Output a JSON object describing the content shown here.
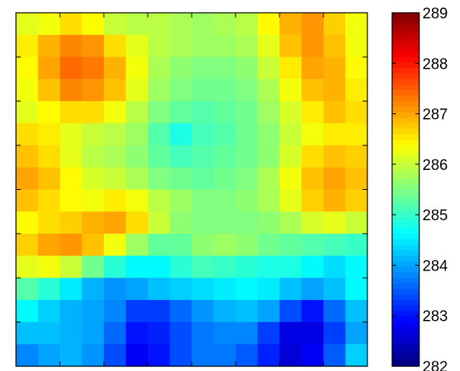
{
  "chart_data": {
    "type": "heatmap",
    "title": "",
    "xlabel": "",
    "ylabel": "",
    "colormap": "jet",
    "grid": false,
    "x_ticks": 7,
    "y_ticks": 7,
    "colorbar": {
      "min": 282,
      "max": 289,
      "ticks": [
        282,
        283,
        284,
        285,
        286,
        287,
        288,
        289
      ],
      "tick_labels": [
        "282",
        "283",
        "284",
        "285",
        "286",
        "287",
        "288",
        "289"
      ]
    },
    "grid_size": {
      "rows": 16,
      "cols": 16
    },
    "values": [
      [
        286.2,
        286.3,
        286.6,
        286.4,
        286.0,
        285.9,
        285.9,
        285.8,
        285.7,
        285.8,
        285.9,
        286.4,
        286.9,
        287.1,
        286.7,
        286.3
      ],
      [
        286.5,
        286.9,
        287.2,
        287.1,
        286.6,
        286.2,
        285.9,
        285.8,
        285.7,
        285.7,
        285.8,
        286.2,
        286.8,
        287.1,
        286.8,
        286.3
      ],
      [
        286.4,
        287.0,
        287.4,
        287.3,
        286.9,
        286.3,
        285.8,
        285.6,
        285.5,
        285.5,
        285.6,
        286.0,
        286.5,
        287.0,
        286.9,
        286.4
      ],
      [
        286.3,
        286.8,
        287.2,
        287.1,
        286.8,
        286.2,
        285.7,
        285.5,
        285.4,
        285.4,
        285.5,
        285.8,
        286.3,
        286.8,
        286.9,
        286.5
      ],
      [
        286.2,
        286.4,
        286.6,
        286.6,
        286.3,
        285.9,
        285.5,
        285.3,
        285.2,
        285.3,
        285.4,
        285.7,
        286.1,
        286.5,
        286.8,
        286.6
      ],
      [
        286.6,
        286.5,
        286.2,
        286.0,
        285.9,
        285.7,
        285.2,
        284.8,
        285.1,
        285.2,
        285.4,
        285.6,
        286.0,
        286.3,
        286.5,
        286.5
      ],
      [
        286.8,
        286.6,
        286.2,
        285.9,
        285.8,
        285.6,
        285.3,
        285.1,
        285.2,
        285.3,
        285.4,
        285.6,
        286.1,
        286.6,
        286.8,
        286.7
      ],
      [
        287.0,
        286.8,
        286.4,
        286.1,
        286.0,
        285.8,
        285.5,
        285.4,
        285.3,
        285.4,
        285.5,
        285.8,
        286.3,
        286.8,
        287.0,
        286.8
      ],
      [
        286.8,
        286.6,
        286.4,
        286.3,
        286.5,
        286.3,
        285.9,
        285.7,
        285.5,
        285.5,
        285.6,
        285.8,
        286.2,
        286.7,
        286.9,
        286.7
      ],
      [
        286.4,
        286.6,
        286.7,
        286.9,
        287.0,
        286.6,
        286.0,
        285.6,
        285.5,
        285.5,
        285.5,
        285.6,
        285.8,
        286.1,
        286.2,
        286.0
      ],
      [
        286.7,
        287.0,
        287.1,
        286.8,
        286.3,
        285.7,
        285.3,
        285.3,
        285.6,
        285.7,
        285.6,
        285.4,
        285.3,
        285.2,
        285.1,
        285.0
      ],
      [
        286.2,
        286.3,
        286.0,
        285.4,
        284.9,
        284.6,
        284.6,
        284.9,
        285.1,
        285.0,
        284.9,
        284.8,
        284.8,
        284.6,
        284.4,
        284.6
      ],
      [
        285.2,
        284.9,
        284.5,
        284.1,
        283.9,
        284.0,
        284.2,
        284.3,
        284.4,
        284.5,
        284.6,
        284.5,
        284.2,
        284.0,
        284.2,
        284.6
      ],
      [
        284.6,
        284.3,
        284.1,
        284.0,
        283.8,
        283.3,
        283.3,
        283.6,
        283.9,
        284.1,
        284.2,
        284.0,
        283.4,
        283.0,
        283.6,
        284.2
      ],
      [
        284.2,
        284.2,
        284.1,
        284.0,
        283.6,
        283.0,
        283.1,
        283.4,
        283.7,
        283.8,
        283.8,
        283.3,
        282.7,
        282.7,
        283.3,
        284.0
      ],
      [
        283.8,
        284.0,
        284.1,
        283.9,
        283.4,
        282.8,
        283.0,
        283.4,
        283.7,
        283.7,
        283.5,
        283.1,
        282.6,
        282.8,
        283.5,
        284.3
      ]
    ]
  }
}
